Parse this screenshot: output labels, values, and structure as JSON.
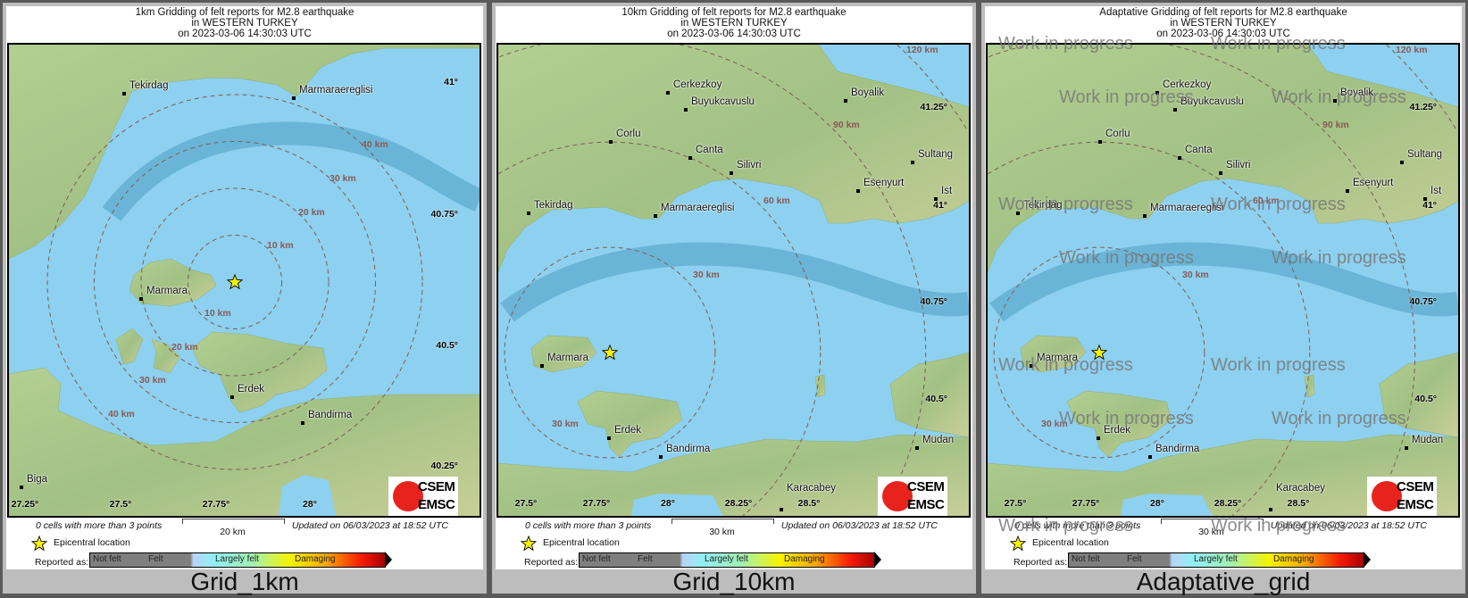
{
  "panels": [
    {
      "title_lines": [
        "1km Gridding of felt reports for M2.8 earthquake",
        "in WESTERN TURKEY",
        "on  2023-03-06 14:30:03 UTC"
      ],
      "caption": "Grid_1km",
      "cities": [
        "Tekirdag",
        "Marmaraereglisi",
        "Marmara",
        "Erdek",
        "Bandirma",
        "Biga"
      ],
      "distance_rings_km": [
        10,
        20,
        30,
        40
      ],
      "distance_labels": [
        "40 km",
        "30 km",
        "20 km",
        "10 km",
        "10 km",
        "20 km",
        "30 km",
        "40 km"
      ],
      "lat_labels": [
        "41°",
        "40.75°",
        "40.5°",
        "40.25°"
      ],
      "lon_labels": [
        "27.25°",
        "27.5°",
        "27.75°",
        "28°"
      ],
      "cells_note": "0 cells with more than 3 points",
      "scale_label": "20 km",
      "updated": "Updated on 06/03/2023 at 18:52 UTC"
    },
    {
      "title_lines": [
        "10km Gridding of felt reports for M2.8 earthquake",
        "in WESTERN TURKEY",
        "on  2023-03-06 14:30:03 UTC"
      ],
      "caption": "Grid_10km",
      "cities": [
        "Cerkezkoy",
        "Buyukcavuslu",
        "Corlu",
        "Canta",
        "Silivri",
        "Tekirdag",
        "Marmaraereglisi",
        "Boyalik",
        "Sultang",
        "Esenyurt",
        "Ist",
        "Marmara",
        "Erdek",
        "Bandirma",
        "Mudan",
        "Karacabey"
      ],
      "distance_rings_km": [
        30,
        60,
        90,
        120
      ],
      "distance_labels": [
        "120 km",
        "90 km",
        "60 km",
        "30 km",
        "30 km"
      ],
      "lat_labels": [
        "41.25°",
        "41°",
        "40.75°",
        "40.5°"
      ],
      "lon_labels": [
        "27.5°",
        "27.75°",
        "28°",
        "28.25°",
        "28.5°"
      ],
      "cells_note": "0 cells with more than 3 points",
      "scale_label": "30 km",
      "updated": "Updated on 06/03/2023 at 18:52 UTC"
    },
    {
      "title_lines": [
        "Adaptative Gridding of felt reports for M2.8 earthquake",
        "in WESTERN TURKEY",
        "on  2023-03-06 14:30:03 UTC"
      ],
      "caption": "Adaptative_grid",
      "cities": [
        "Cerkezkoy",
        "Buyukcavuslu",
        "Corlu",
        "Canta",
        "Silivri",
        "Tekirdag",
        "Marmaraereglisi",
        "Boyalik",
        "Sultang",
        "Esenyurt",
        "Ist",
        "Marmara",
        "Erdek",
        "Bandirma",
        "Mudan",
        "Karacabey"
      ],
      "distance_rings_km": [
        30,
        60,
        90,
        120
      ],
      "distance_labels": [
        "120 km",
        "90 km",
        "60 km",
        "30 km",
        "30 km"
      ],
      "lat_labels": [
        "41.25°",
        "41°",
        "40.75°",
        "40.5°"
      ],
      "lon_labels": [
        "27.5°",
        "27.75°",
        "28°",
        "28.25°",
        "28.5°"
      ],
      "cells_note": "0 cells with more than 3 points",
      "scale_label": "30 km",
      "updated": "Updated on 06/03/2023 at 18:52 UTC",
      "watermark": "Work in progress"
    }
  ],
  "legend": {
    "epicenter": "Epicentral location",
    "reported_as": "Reported as:",
    "levels": [
      "Not felt",
      "Felt",
      "Largely felt",
      "Damaging"
    ],
    "epicenter_icon": "star-icon"
  },
  "logo": {
    "line1": "CSEM",
    "line2": "EMSC"
  },
  "colors": {
    "sea": "#8dd0ef",
    "land": "#a9c68c",
    "ring": "#7a5f5a",
    "distance_label": "#8a5a55",
    "star": "#f7f300",
    "logo_red": "#e8231d"
  }
}
